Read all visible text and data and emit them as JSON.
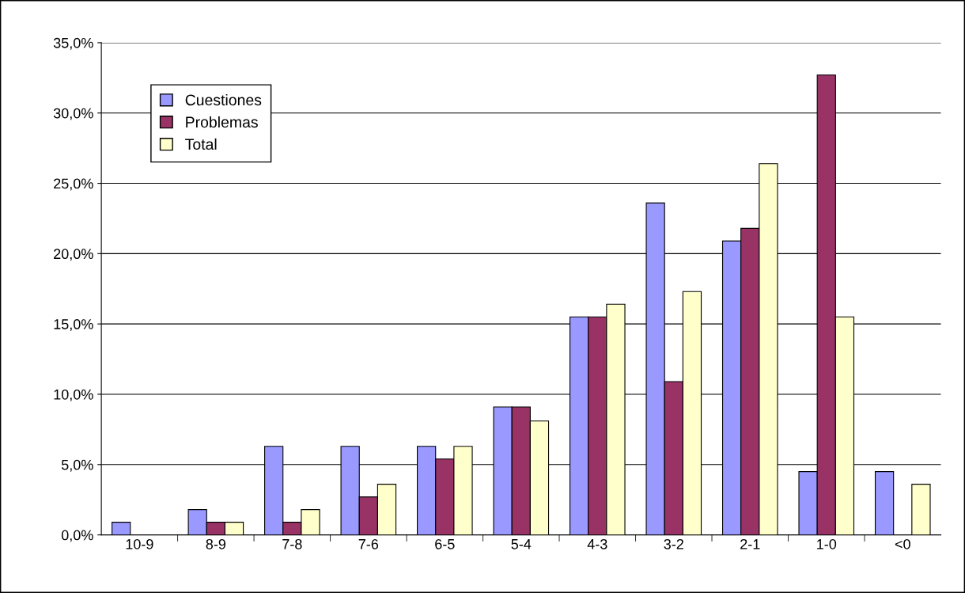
{
  "chart_data": {
    "type": "bar",
    "categories": [
      "10-9",
      "8-9",
      "7-8",
      "7-6",
      "6-5",
      "5-4",
      "4-3",
      "3-2",
      "2-1",
      "1-0",
      "<0"
    ],
    "series": [
      {
        "name": "Cuestiones",
        "color": "#9999ff",
        "values": [
          0.9,
          1.8,
          6.3,
          6.3,
          6.3,
          9.1,
          15.5,
          23.6,
          20.9,
          4.5,
          4.5
        ]
      },
      {
        "name": "Problemas",
        "color": "#993366",
        "values": [
          0,
          0.9,
          0.9,
          2.7,
          5.4,
          9.1,
          15.5,
          10.9,
          21.8,
          32.7,
          0
        ]
      },
      {
        "name": "Total",
        "color": "#ffffcc",
        "values": [
          0,
          0.9,
          1.8,
          3.6,
          6.3,
          8.1,
          16.4,
          17.3,
          26.4,
          15.5,
          3.6
        ]
      }
    ],
    "ylim": [
      0,
      35
    ],
    "yticks": [
      {
        "value": 0,
        "label": "0,0%"
      },
      {
        "value": 5,
        "label": "5,0%"
      },
      {
        "value": 10,
        "label": "10,0%"
      },
      {
        "value": 15,
        "label": "15,0%"
      },
      {
        "value": 20,
        "label": "20,0%"
      },
      {
        "value": 25,
        "label": "25,0%"
      },
      {
        "value": 30,
        "label": "30,0%"
      },
      {
        "value": 35,
        "label": "35,0%"
      }
    ],
    "grid": "y",
    "legend": "top left"
  }
}
